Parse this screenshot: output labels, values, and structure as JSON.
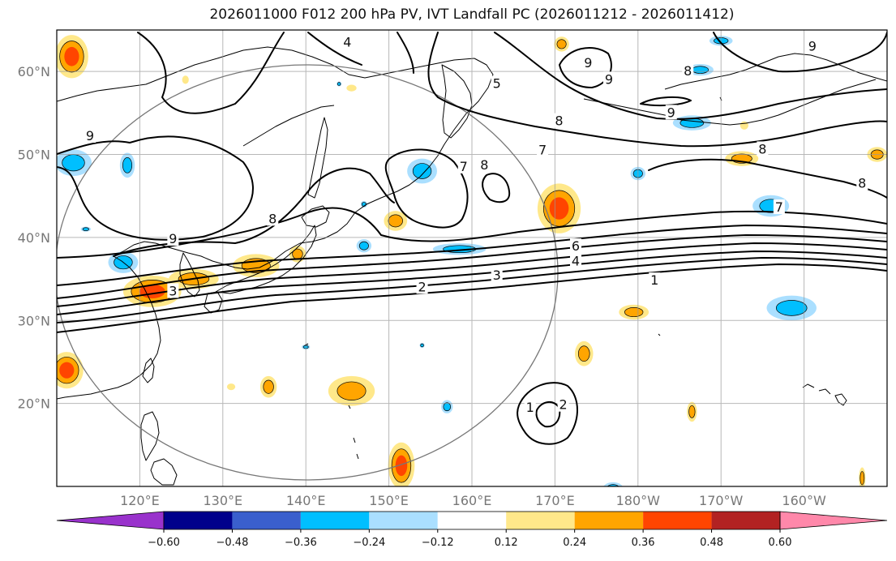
{
  "title": "2026011000 F012 200 hPa PV, IVT Landfall PC (2026011212 - 2026011412)",
  "chart_data": {
    "type": "map",
    "projection": "equirectangular",
    "lon_range": [
      110,
      210
    ],
    "lat_range": [
      10,
      65
    ],
    "grid": true,
    "lon_ticks": [
      {
        "value": 120,
        "label": "120°E"
      },
      {
        "value": 130,
        "label": "130°E"
      },
      {
        "value": 140,
        "label": "140°E"
      },
      {
        "value": 150,
        "label": "150°E"
      },
      {
        "value": 160,
        "label": "160°E"
      },
      {
        "value": 170,
        "label": "170°E"
      },
      {
        "value": 180,
        "label": "180°W"
      },
      {
        "value": 190,
        "label": "170°W"
      },
      {
        "value": 200,
        "label": "160°W"
      }
    ],
    "lat_ticks": [
      {
        "value": 20,
        "label": "20°N"
      },
      {
        "value": 30,
        "label": "30°N"
      },
      {
        "value": 40,
        "label": "40°N"
      },
      {
        "value": 50,
        "label": "50°N"
      },
      {
        "value": 60,
        "label": "60°N"
      }
    ],
    "colorbar": {
      "orientation": "horizontal",
      "extend": "both",
      "boundaries": [
        -0.6,
        -0.48,
        -0.36,
        -0.24,
        -0.12,
        0.12,
        0.24,
        0.36,
        0.48,
        0.6
      ],
      "tick_labels": [
        "−0.60",
        "−0.48",
        "−0.36",
        "−0.24",
        "−0.12",
        "0.12",
        "0.24",
        "0.36",
        "0.48",
        "0.60"
      ],
      "colors": [
        "#9932cc",
        "#00008b",
        "#3a5fcd",
        "#00bfff",
        "#aadfff",
        "#ffffff",
        "#ffe88a",
        "#ffa500",
        "#ff4500",
        "#b22222",
        "#ff88aa"
      ]
    },
    "pv_contour_labels": [
      {
        "lon": 124,
        "lat": 33.5,
        "text": "3"
      },
      {
        "lon": 124,
        "lat": 39.8,
        "text": "9"
      },
      {
        "lon": 114,
        "lat": 52.2,
        "text": "9"
      },
      {
        "lon": 136,
        "lat": 42.2,
        "text": "8"
      },
      {
        "lon": 154,
        "lat": 34.0,
        "text": "2"
      },
      {
        "lon": 163,
        "lat": 35.4,
        "text": "3"
      },
      {
        "lon": 172.5,
        "lat": 37.1,
        "text": "4"
      },
      {
        "lon": 172.5,
        "lat": 38.9,
        "text": "6"
      },
      {
        "lon": 182,
        "lat": 34.8,
        "text": "1"
      },
      {
        "lon": 197,
        "lat": 43.6,
        "text": "7"
      },
      {
        "lon": 195,
        "lat": 50.6,
        "text": "8"
      },
      {
        "lon": 207,
        "lat": 46.5,
        "text": "8"
      },
      {
        "lon": 176.5,
        "lat": 59.0,
        "text": "9"
      },
      {
        "lon": 184,
        "lat": 55.0,
        "text": "9"
      },
      {
        "lon": 186,
        "lat": 60.0,
        "text": "8"
      },
      {
        "lon": 201,
        "lat": 63.0,
        "text": "9"
      },
      {
        "lon": 170.5,
        "lat": 54.0,
        "text": "8"
      },
      {
        "lon": 168.5,
        "lat": 50.5,
        "text": "7"
      },
      {
        "lon": 161.5,
        "lat": 48.7,
        "text": "8"
      },
      {
        "lon": 159,
        "lat": 48.5,
        "text": "7"
      },
      {
        "lon": 145,
        "lat": 63.5,
        "text": "4"
      },
      {
        "lon": 163,
        "lat": 58.5,
        "text": "5"
      },
      {
        "lon": 174,
        "lat": 61.0,
        "text": "9"
      },
      {
        "lon": 167,
        "lat": 19.5,
        "text": "1"
      },
      {
        "lon": 171,
        "lat": 19.8,
        "text": "2"
      }
    ],
    "ivt_pc_blobs": [
      {
        "lon": 111.8,
        "lat": 61.8,
        "rlon": 2.0,
        "rlat": 2.6,
        "value": 0.42
      },
      {
        "lon": 111.2,
        "lat": 24.0,
        "rlon": 2.0,
        "rlat": 2.2,
        "value": 0.45
      },
      {
        "lon": 121.5,
        "lat": 33.5,
        "rlon": 3.5,
        "rlat": 1.9,
        "value": 0.45
      },
      {
        "lon": 126.5,
        "lat": 35.0,
        "rlon": 3.0,
        "rlat": 1.2,
        "value": 0.3
      },
      {
        "lon": 134.0,
        "lat": 36.6,
        "rlon": 2.8,
        "rlat": 1.4,
        "value": 0.32
      },
      {
        "lon": 139.0,
        "lat": 38.0,
        "rlon": 1.0,
        "rlat": 1.0,
        "value": 0.28
      },
      {
        "lon": 170.5,
        "lat": 43.5,
        "rlon": 2.6,
        "rlat": 3.0,
        "value": 0.45
      },
      {
        "lon": 150.8,
        "lat": 42.0,
        "rlon": 1.4,
        "rlat": 1.2,
        "value": 0.3
      },
      {
        "lon": 179.5,
        "lat": 31.0,
        "rlon": 1.8,
        "rlat": 0.9,
        "value": 0.3
      },
      {
        "lon": 192.5,
        "lat": 49.5,
        "rlon": 2.0,
        "rlat": 0.9,
        "value": 0.3
      },
      {
        "lon": 208.8,
        "lat": 50.0,
        "rlon": 1.2,
        "rlat": 0.9,
        "value": 0.3
      },
      {
        "lon": 173.5,
        "lat": 26.0,
        "rlon": 1.1,
        "rlat": 1.5,
        "value": 0.26
      },
      {
        "lon": 151.5,
        "lat": 12.5,
        "rlon": 1.6,
        "rlat": 2.8,
        "value": 0.38
      },
      {
        "lon": 145.5,
        "lat": 21.5,
        "rlon": 2.8,
        "rlat": 1.8,
        "value": 0.3
      },
      {
        "lon": 135.5,
        "lat": 22.0,
        "rlon": 1.0,
        "rlat": 1.3,
        "value": 0.33
      },
      {
        "lon": 131.0,
        "lat": 22.0,
        "rlon": 0.5,
        "rlat": 0.4,
        "value": 0.2
      },
      {
        "lon": 170.8,
        "lat": 63.3,
        "rlon": 0.9,
        "rlat": 0.9,
        "value": 0.26
      },
      {
        "lon": 186.5,
        "lat": 19.0,
        "rlon": 0.6,
        "rlat": 1.2,
        "value": 0.25
      },
      {
        "lon": 207.0,
        "lat": 11.0,
        "rlon": 0.4,
        "rlat": 1.3,
        "value": 0.3
      },
      {
        "lon": 192.8,
        "lat": 53.5,
        "rlon": 0.5,
        "rlat": 0.5,
        "value": 0.2
      },
      {
        "lon": 125.5,
        "lat": 59.0,
        "rlon": 0.4,
        "rlat": 0.5,
        "value": 0.2
      },
      {
        "lon": 145.5,
        "lat": 58.0,
        "rlon": 0.6,
        "rlat": 0.4,
        "value": 0.2
      },
      {
        "lon": 112.0,
        "lat": 49.0,
        "rlon": 2.2,
        "rlat": 1.6,
        "value": -0.33
      },
      {
        "lon": 118.5,
        "lat": 48.7,
        "rlon": 0.9,
        "rlat": 1.5,
        "value": -0.3
      },
      {
        "lon": 118.0,
        "lat": 37.0,
        "rlon": 1.8,
        "rlat": 1.3,
        "value": -0.33
      },
      {
        "lon": 154.0,
        "lat": 48.0,
        "rlon": 1.8,
        "rlat": 1.5,
        "value": -0.33
      },
      {
        "lon": 147.0,
        "lat": 39.0,
        "rlon": 0.9,
        "rlat": 0.8,
        "value": -0.3
      },
      {
        "lon": 158.5,
        "lat": 38.6,
        "rlon": 3.2,
        "rlat": 0.7,
        "value": -0.3
      },
      {
        "lon": 186.5,
        "lat": 53.8,
        "rlon": 2.3,
        "rlat": 0.9,
        "value": -0.33
      },
      {
        "lon": 180.0,
        "lat": 47.7,
        "rlon": 0.9,
        "rlat": 0.8,
        "value": -0.3
      },
      {
        "lon": 196.0,
        "lat": 43.8,
        "rlon": 2.2,
        "rlat": 1.3,
        "value": -0.33
      },
      {
        "lon": 198.5,
        "lat": 31.5,
        "rlon": 3.0,
        "rlat": 1.5,
        "value": -0.33
      },
      {
        "lon": 187.5,
        "lat": 60.2,
        "rlon": 1.6,
        "rlat": 0.7,
        "value": -0.3
      },
      {
        "lon": 190.0,
        "lat": 63.7,
        "rlon": 1.4,
        "rlat": 0.6,
        "value": -0.3
      },
      {
        "lon": 157.0,
        "lat": 19.6,
        "rlon": 0.7,
        "rlat": 0.8,
        "value": -0.33
      },
      {
        "lon": 177.0,
        "lat": 9.8,
        "rlon": 1.2,
        "rlat": 0.7,
        "value": -0.3
      },
      {
        "lon": 113.5,
        "lat": 41.0,
        "rlon": 0.6,
        "rlat": 0.3,
        "value": -0.25
      },
      {
        "lon": 147.0,
        "lat": 44.0,
        "rlon": 0.4,
        "rlat": 0.4,
        "value": -0.25
      },
      {
        "lon": 144.0,
        "lat": 58.5,
        "rlon": 0.3,
        "rlat": 0.3,
        "value": -0.25
      },
      {
        "lon": 140.0,
        "lat": 26.8,
        "rlon": 0.5,
        "rlat": 0.3,
        "value": -0.3
      },
      {
        "lon": 154.0,
        "lat": 27.0,
        "rlon": 0.3,
        "rlat": 0.3,
        "value": -0.3
      }
    ]
  },
  "icons": {
    "coastline": "coastline-lines",
    "region_circle": "circle-outline"
  }
}
